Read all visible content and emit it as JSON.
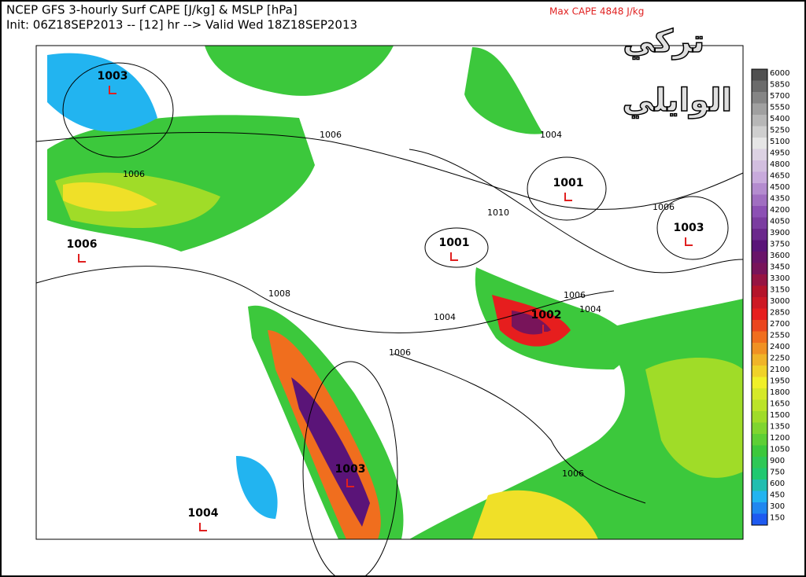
{
  "header": {
    "line1": "NCEP GFS 3-hourly Surf CAPE [J/kg] & MSLP [hPa]",
    "line2": "Init: 06Z18SEP2013 -- [12] hr --> Valid Wed 18Z18SEP2013",
    "max_cape": "Max CAPE  4848 J/kg"
  },
  "watermark": {
    "line1": "تركي",
    "line2": "الوايلي"
  },
  "map": {
    "pressure_centers": [
      "1003",
      "1006",
      "1004",
      "1001",
      "1001",
      "1003",
      "1002",
      "1003"
    ],
    "isobar_labels": [
      "1006",
      "1006",
      "1004",
      "1010",
      "1006",
      "1008",
      "1004",
      "1006",
      "1006",
      "1004",
      "1006"
    ]
  },
  "colorbar": {
    "labels": [
      "6000",
      "5850",
      "5700",
      "5550",
      "5400",
      "5250",
      "5100",
      "4950",
      "4800",
      "4650",
      "4500",
      "4350",
      "4200",
      "4050",
      "3900",
      "3750",
      "3600",
      "3450",
      "3300",
      "3150",
      "3000",
      "2850",
      "2700",
      "2550",
      "2400",
      "2250",
      "2100",
      "1950",
      "1800",
      "1650",
      "1500",
      "1350",
      "1200",
      "1050",
      "900",
      "750",
      "600",
      "450",
      "300",
      "150"
    ]
  }
}
